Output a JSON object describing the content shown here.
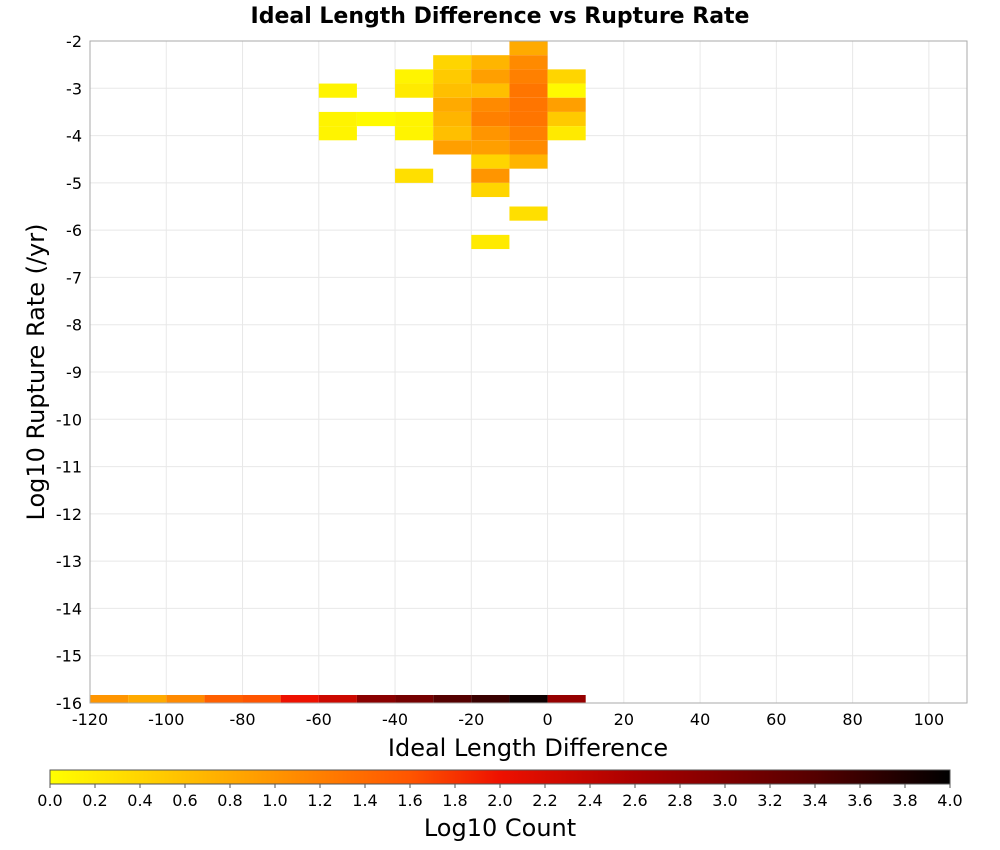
{
  "chart_data": {
    "type": "heatmap",
    "title": "Ideal Length Difference vs Rupture Rate",
    "xlabel": "Ideal Length Difference",
    "ylabel": "Log10 Rupture Rate (/yr)",
    "xlim": [
      -120,
      110
    ],
    "ylim": [
      -16,
      -2
    ],
    "x_ticks": [
      "-120",
      "-100",
      "-80",
      "-60",
      "-40",
      "-20",
      "0",
      "20",
      "40",
      "60",
      "80",
      "100"
    ],
    "y_ticks": [
      "-2",
      "-3",
      "-4",
      "-5",
      "-6",
      "-7",
      "-8",
      "-9",
      "-10",
      "-11",
      "-12",
      "-13",
      "-14",
      "-15",
      "-16"
    ],
    "grid": true,
    "x_bin_width": 10,
    "y_bin_height": 0.3,
    "cells": [
      {
        "x": -10,
        "y": -2.15,
        "v": 0.8
      },
      {
        "x": -30,
        "y": -2.45,
        "v": 0.4
      },
      {
        "x": -20,
        "y": -2.45,
        "v": 0.7
      },
      {
        "x": -10,
        "y": -2.45,
        "v": 1.1
      },
      {
        "x": -40,
        "y": -2.75,
        "v": 0.1
      },
      {
        "x": -30,
        "y": -2.75,
        "v": 0.5
      },
      {
        "x": -20,
        "y": -2.75,
        "v": 0.9
      },
      {
        "x": -10,
        "y": -2.75,
        "v": 1.2
      },
      {
        "x": 0,
        "y": -2.75,
        "v": 0.4
      },
      {
        "x": -60,
        "y": -3.05,
        "v": 0.1
      },
      {
        "x": -40,
        "y": -3.05,
        "v": 0.2
      },
      {
        "x": -30,
        "y": -3.05,
        "v": 0.6
      },
      {
        "x": -20,
        "y": -3.05,
        "v": 0.6
      },
      {
        "x": -10,
        "y": -3.05,
        "v": 1.3
      },
      {
        "x": 0,
        "y": -3.05,
        "v": 0.05
      },
      {
        "x": -30,
        "y": -3.35,
        "v": 0.8
      },
      {
        "x": -20,
        "y": -3.35,
        "v": 1.1
      },
      {
        "x": -10,
        "y": -3.35,
        "v": 1.3
      },
      {
        "x": 0,
        "y": -3.35,
        "v": 0.9
      },
      {
        "x": -60,
        "y": -3.65,
        "v": 0.1
      },
      {
        "x": -50,
        "y": -3.65,
        "v": 0.05
      },
      {
        "x": -40,
        "y": -3.65,
        "v": 0.1
      },
      {
        "x": -30,
        "y": -3.65,
        "v": 0.7
      },
      {
        "x": -20,
        "y": -3.65,
        "v": 1.2
      },
      {
        "x": -10,
        "y": -3.65,
        "v": 1.3
      },
      {
        "x": 0,
        "y": -3.65,
        "v": 0.5
      },
      {
        "x": -60,
        "y": -3.95,
        "v": 0.1
      },
      {
        "x": -40,
        "y": -3.95,
        "v": 0.1
      },
      {
        "x": -30,
        "y": -3.95,
        "v": 0.6
      },
      {
        "x": -20,
        "y": -3.95,
        "v": 1.0
      },
      {
        "x": -10,
        "y": -3.95,
        "v": 1.2
      },
      {
        "x": 0,
        "y": -3.95,
        "v": 0.2
      },
      {
        "x": -30,
        "y": -4.25,
        "v": 0.9
      },
      {
        "x": -20,
        "y": -4.25,
        "v": 0.9
      },
      {
        "x": -10,
        "y": -4.25,
        "v": 1.1
      },
      {
        "x": -20,
        "y": -4.55,
        "v": 0.4
      },
      {
        "x": -10,
        "y": -4.55,
        "v": 0.7
      },
      {
        "x": -40,
        "y": -4.85,
        "v": 0.3
      },
      {
        "x": -20,
        "y": -4.85,
        "v": 1.0
      },
      {
        "x": -20,
        "y": -5.15,
        "v": 0.4
      },
      {
        "x": -10,
        "y": -5.65,
        "v": 0.3
      },
      {
        "x": -20,
        "y": -6.25,
        "v": 0.2
      },
      {
        "x": -120,
        "y": -16,
        "v": 1.0
      },
      {
        "x": -110,
        "y": -16,
        "v": 0.8
      },
      {
        "x": -100,
        "y": -16,
        "v": 1.1
      },
      {
        "x": -90,
        "y": -16,
        "v": 1.5
      },
      {
        "x": -80,
        "y": -16,
        "v": 1.6
      },
      {
        "x": -70,
        "y": -16,
        "v": 2.0
      },
      {
        "x": -60,
        "y": -16,
        "v": 2.3
      },
      {
        "x": -50,
        "y": -16,
        "v": 2.9
      },
      {
        "x": -40,
        "y": -16,
        "v": 3.1
      },
      {
        "x": -30,
        "y": -16,
        "v": 3.4
      },
      {
        "x": -20,
        "y": -16,
        "v": 3.6
      },
      {
        "x": -10,
        "y": -16,
        "v": 3.9
      },
      {
        "x": 0,
        "y": -16,
        "v": 2.8
      }
    ],
    "colorbar": {
      "label": "Log10 Count",
      "min": 0.0,
      "max": 4.0,
      "ticks": [
        "0.0",
        "0.2",
        "0.4",
        "0.6",
        "0.8",
        "1.0",
        "1.2",
        "1.4",
        "1.6",
        "1.8",
        "2.0",
        "2.2",
        "2.4",
        "2.6",
        "2.8",
        "3.0",
        "3.2",
        "3.4",
        "3.6",
        "3.8",
        "4.0"
      ],
      "stops": [
        {
          "v": 0.0,
          "color": "#ffff00"
        },
        {
          "v": 0.8,
          "color": "#ffaa00"
        },
        {
          "v": 1.6,
          "color": "#ff5500"
        },
        {
          "v": 2.0,
          "color": "#ee1100"
        },
        {
          "v": 2.6,
          "color": "#aa0000"
        },
        {
          "v": 3.4,
          "color": "#550000"
        },
        {
          "v": 4.0,
          "color": "#000000"
        }
      ]
    }
  }
}
